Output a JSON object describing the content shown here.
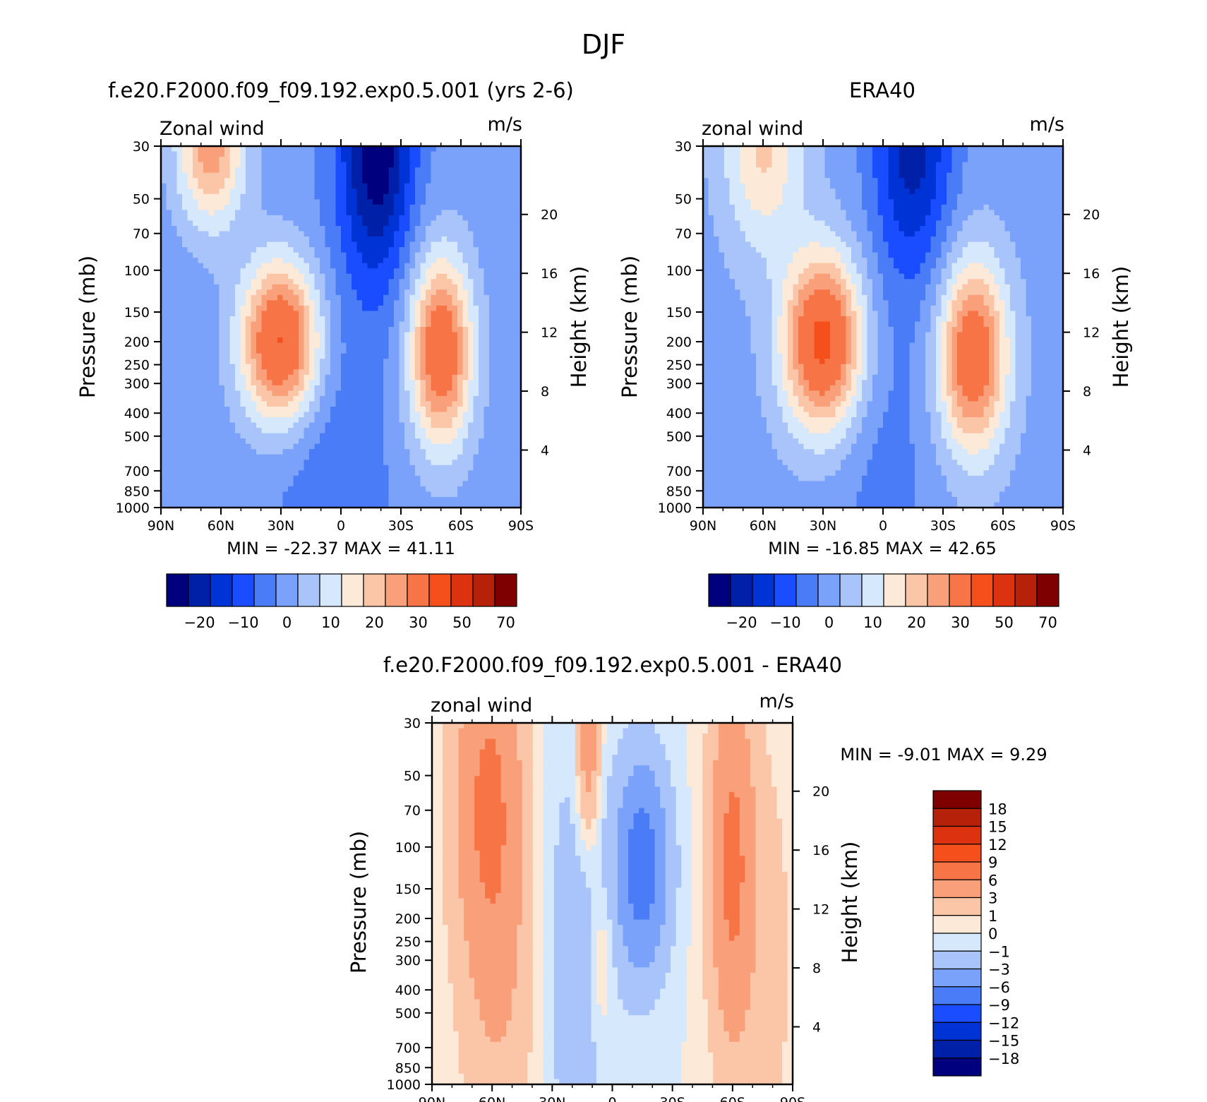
{
  "figure_title": "DJF",
  "colors": {
    "main_scale": [
      "#00007f",
      "#0020a8",
      "#0033d5",
      "#1a4dff",
      "#4a7cf7",
      "#7aa2fb",
      "#a8c4fb",
      "#d6e8fb",
      "#fde9d8",
      "#fbc6a8",
      "#f9a07a",
      "#f77447",
      "#f5501c",
      "#dd3210",
      "#b52209",
      "#7f0000"
    ],
    "diff_scale": [
      "#00007f",
      "#0020a8",
      "#0033d5",
      "#1a4dff",
      "#4a7cf7",
      "#7aa2fb",
      "#a8c4fb",
      "#d6e8fb",
      "#fde9d8",
      "#fbc6a8",
      "#f9a07a",
      "#f77447",
      "#f5501c",
      "#dd3210",
      "#b52209",
      "#7f0000"
    ]
  },
  "chart_data": [
    {
      "id": "model",
      "type": "heatmap",
      "title": "f.e20.F2000.f09_f09.192.exp0.5.001 (yrs 2-6)",
      "left_label": "Zonal wind",
      "right_label": "m/s",
      "ylabel": "Pressure (mb)",
      "ylabel_right": "Height (km)",
      "x_ticks": [
        "90N",
        "60N",
        "30N",
        "0",
        "30S",
        "60S",
        "90S"
      ],
      "y_ticks": [
        "30",
        "50",
        "70",
        "100",
        "150",
        "200",
        "250",
        "300",
        "400",
        "500",
        "700",
        "850",
        "1000"
      ],
      "y_right_ticks": [
        "20",
        "16",
        "12",
        "8",
        "4"
      ],
      "min_max_text": "MIN =  -22.37   MAX =   41.11",
      "min": -22.37,
      "max": 41.11,
      "colorbar_labels": [
        "-20",
        "-10",
        "0",
        "10",
        "20",
        "30",
        "50",
        "70"
      ],
      "field": {
        "base": 2,
        "blobs": [
          {
            "lat": 30,
            "p": 200,
            "sx": 14,
            "sy": 0.55,
            "amp": 40
          },
          {
            "lat": 65,
            "p": 30,
            "sx": 12,
            "sy": 0.55,
            "amp": 26
          },
          {
            "lat": -50,
            "p": 220,
            "sx": 11,
            "sy": 0.65,
            "amp": 36
          },
          {
            "lat": -18,
            "p": 30,
            "sx": 13,
            "sy": 0.9,
            "amp": -26
          },
          {
            "lat": 5,
            "p": 700,
            "sx": 20,
            "sy": 1.5,
            "amp": -6
          }
        ]
      }
    },
    {
      "id": "obs",
      "type": "heatmap",
      "title": "ERA40",
      "left_label": "zonal wind",
      "right_label": "m/s",
      "ylabel": "Pressure (mb)",
      "ylabel_right": "Height (km)",
      "x_ticks": [
        "90N",
        "60N",
        "30N",
        "0",
        "30S",
        "60S",
        "90S"
      ],
      "y_ticks": [
        "30",
        "50",
        "70",
        "100",
        "150",
        "200",
        "250",
        "300",
        "400",
        "500",
        "700",
        "850",
        "1000"
      ],
      "y_right_ticks": [
        "20",
        "16",
        "12",
        "8",
        "4"
      ],
      "min_max_text": "MIN =  -16.85   MAX =   42.65",
      "min": -16.85,
      "max": 42.65,
      "colorbar_labels": [
        "-20",
        "-10",
        "0",
        "10",
        "20",
        "30",
        "50",
        "70"
      ],
      "field": {
        "base": 3,
        "blobs": [
          {
            "lat": 30,
            "p": 200,
            "sx": 14,
            "sy": 0.6,
            "amp": 40
          },
          {
            "lat": 60,
            "p": 30,
            "sx": 14,
            "sy": 0.7,
            "amp": 18
          },
          {
            "lat": -45,
            "p": 230,
            "sx": 12,
            "sy": 0.65,
            "amp": 35
          },
          {
            "lat": -15,
            "p": 30,
            "sx": 14,
            "sy": 0.9,
            "amp": -20
          },
          {
            "lat": 0,
            "p": 700,
            "sx": 18,
            "sy": 1.4,
            "amp": -5
          }
        ]
      }
    },
    {
      "id": "diff",
      "type": "heatmap",
      "title": "f.e20.F2000.f09_f09.192.exp0.5.001 - ERA40",
      "left_label": "zonal wind",
      "right_label": "m/s",
      "ylabel": "Pressure (mb)",
      "ylabel_right": "Height (km)",
      "x_ticks": [
        "90N",
        "60N",
        "30N",
        "0",
        "30S",
        "60S",
        "90S"
      ],
      "y_ticks": [
        "30",
        "50",
        "70",
        "100",
        "150",
        "200",
        "250",
        "300",
        "400",
        "500",
        "700",
        "850",
        "1000"
      ],
      "y_right_ticks": [
        "20",
        "16",
        "12",
        "8",
        "4"
      ],
      "min_max_text": "MIN =   -9.01   MAX =    9.29",
      "min": -9.01,
      "max": 9.29,
      "colorbar_labels": [
        "18",
        "15",
        "12",
        "9",
        "6",
        "3",
        "1",
        "0",
        "-1",
        "-3",
        "-6",
        "-9",
        "-12",
        "-15",
        "-18"
      ],
      "field": {
        "base": 0,
        "blobs": [
          {
            "lat": 62,
            "p": 60,
            "sx": 12,
            "sy": 1.2,
            "amp": 6
          },
          {
            "lat": 55,
            "p": 400,
            "sx": 14,
            "sy": 1.5,
            "amp": 2.5
          },
          {
            "lat": 20,
            "p": 300,
            "sx": 14,
            "sy": 1.6,
            "amp": -2
          },
          {
            "lat": -15,
            "p": 120,
            "sx": 9,
            "sy": 0.7,
            "amp": -8
          },
          {
            "lat": -60,
            "p": 120,
            "sx": 8,
            "sy": 1.3,
            "amp": 7
          },
          {
            "lat": 5,
            "p": 300,
            "sx": 4,
            "sy": 0.5,
            "amp": 2
          },
          {
            "lat": 12,
            "p": 40,
            "sx": 4,
            "sy": 0.6,
            "amp": 5
          },
          {
            "lat": -80,
            "p": 300,
            "sx": 8,
            "sy": 1.5,
            "amp": 1.5
          }
        ]
      }
    }
  ]
}
